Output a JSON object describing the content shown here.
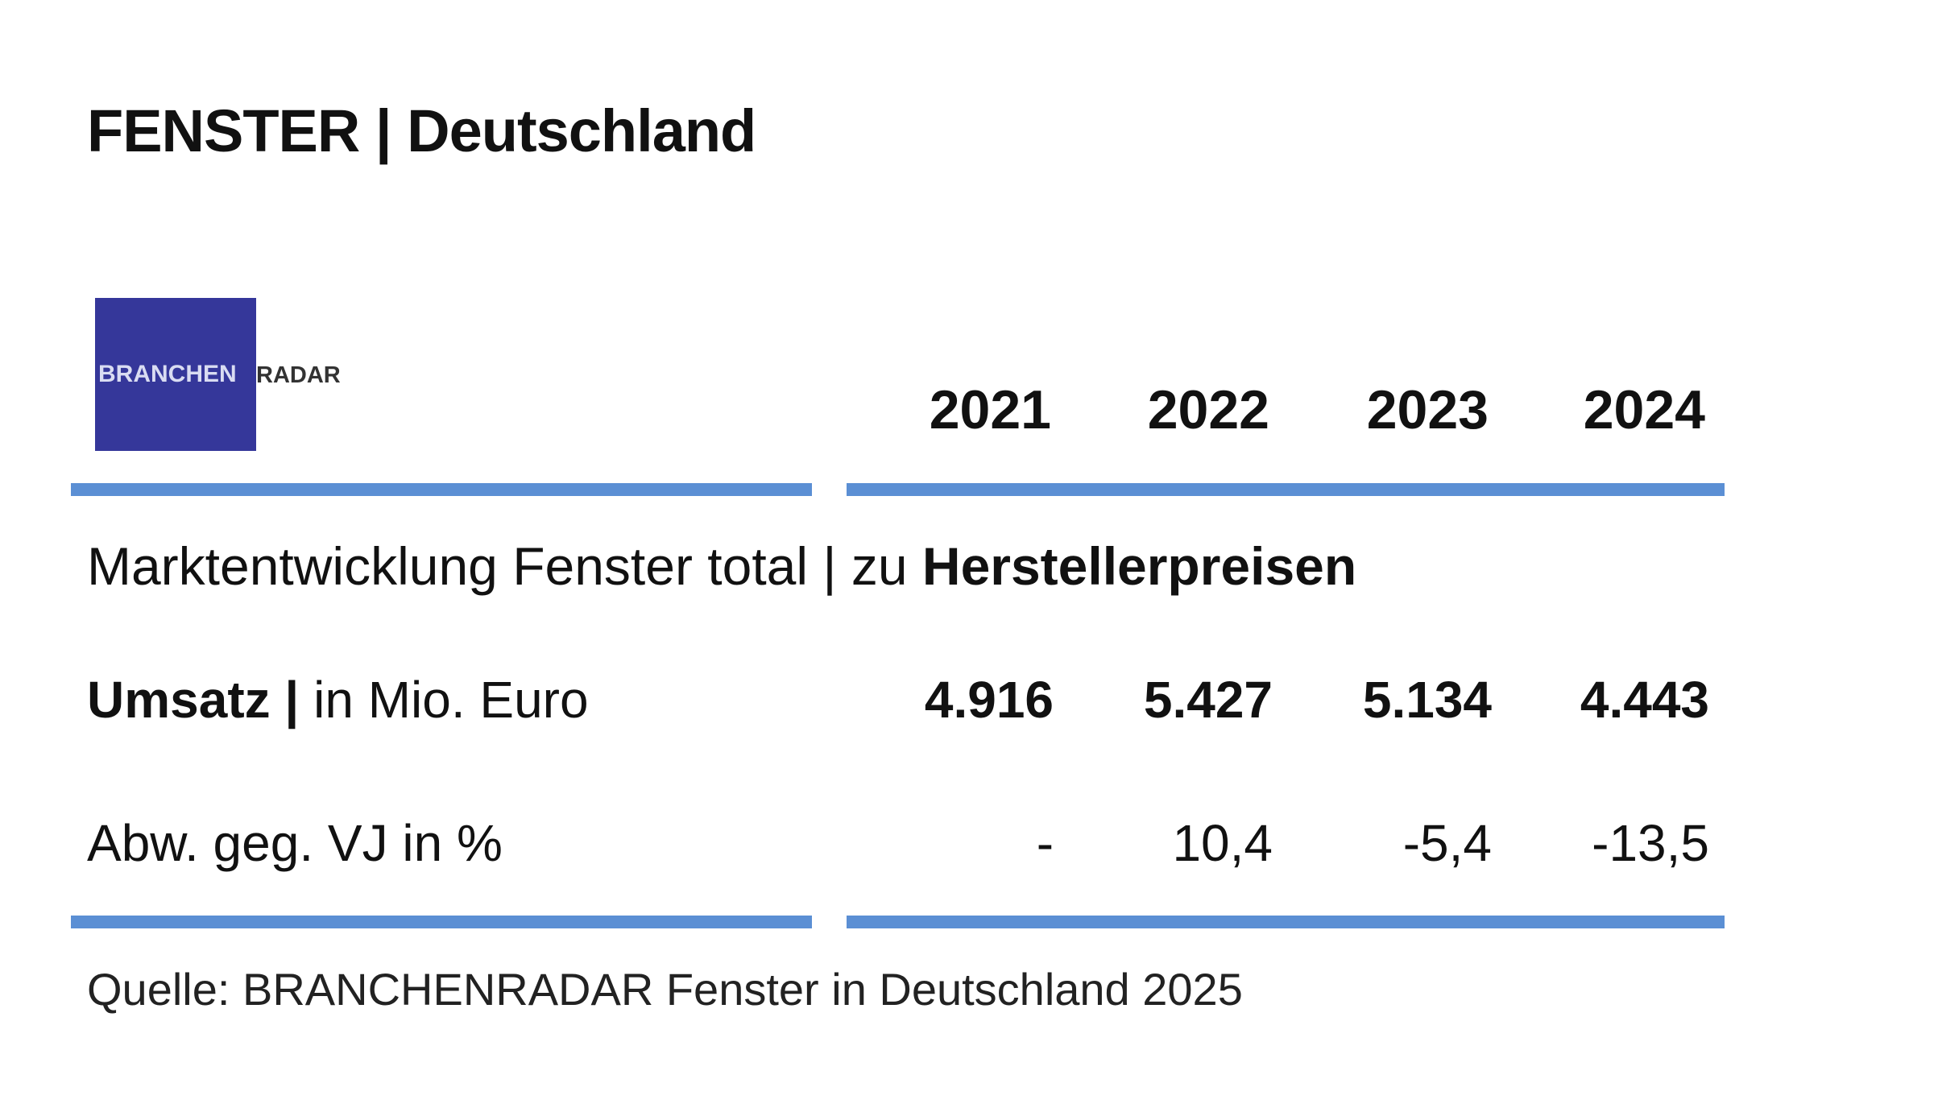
{
  "header": {
    "title": "FENSTER | Deutschland"
  },
  "logo": {
    "part1": "BRANCHEN",
    "part2": "RADAR"
  },
  "table": {
    "columns": [
      "2021",
      "2022",
      "2023",
      "2024"
    ],
    "subtitle": {
      "normal": "Marktentwicklung Fenster total | zu",
      "bold": "Herstellerpreisen"
    },
    "rows": [
      {
        "label_bold": "Umsatz |",
        "label": "in Mio. Euro",
        "values": [
          "4.916",
          "5.427",
          "5.134",
          "4.443"
        ]
      },
      {
        "label": "Abw. geg. VJ in %",
        "values": [
          "-",
          "10,4",
          "-5,4",
          "-13,5"
        ]
      }
    ]
  },
  "footer": {
    "source": "Quelle: BRANCHENRADAR Fenster in Deutschland 2025"
  }
}
